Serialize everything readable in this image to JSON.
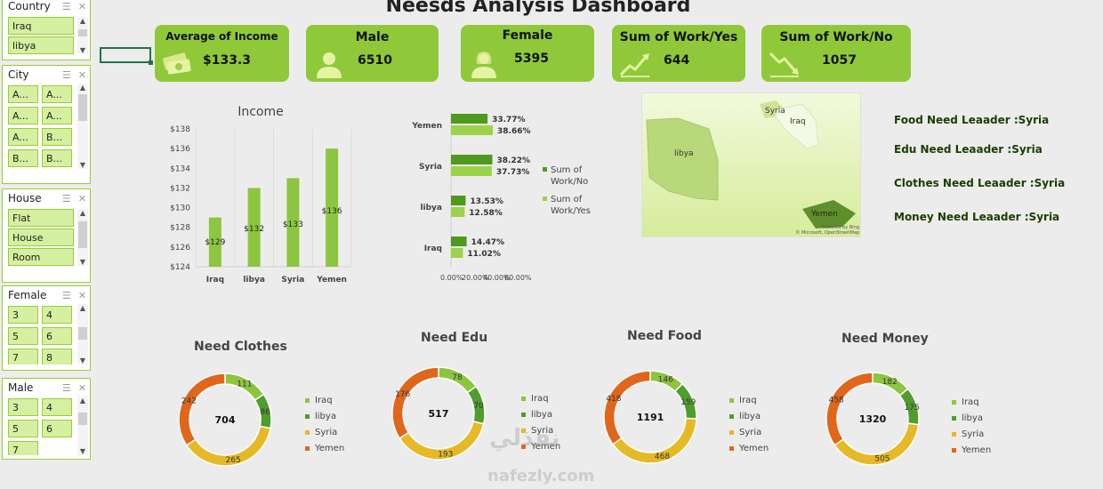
{
  "dashboard": {
    "title": "Neesds Analysis Dashboard"
  },
  "slicers": {
    "country": {
      "title": "Country",
      "items": [
        "Iraq",
        "libya"
      ]
    },
    "city": {
      "title": "City",
      "items": [
        "A...",
        "A...",
        "A...",
        "A...",
        "A...",
        "B...",
        "B...",
        "B..."
      ]
    },
    "house": {
      "title": "House",
      "items": [
        "Flat",
        "House",
        "Room"
      ]
    },
    "female": {
      "title": "Female",
      "items": [
        "3",
        "4",
        "5",
        "6",
        "7",
        "8"
      ]
    },
    "male": {
      "title": "Male",
      "items": [
        "3",
        "4",
        "5",
        "6",
        "7"
      ]
    }
  },
  "cards": [
    {
      "label": "Average of Income",
      "value": "$133.3",
      "icon": "money-icon"
    },
    {
      "label": "Male",
      "value": "6510",
      "icon": "male-user-icon"
    },
    {
      "label": "Female",
      "value": "5395",
      "icon": "female-user-icon"
    },
    {
      "label": "Sum of Work/Yes",
      "value": "644",
      "icon": "trend-up-icon"
    },
    {
      "label": "Sum of Work/No",
      "value": "1057",
      "icon": "trend-down-icon"
    }
  ],
  "colors": {
    "accent": "#8fc93a",
    "bar": "#8cc63f",
    "dark_green": "#4e9a1e",
    "light_green": "#9bd34a",
    "yemen": "#e0661c",
    "syria": "#e6b926",
    "libya": "#4f9d2c",
    "iraq": "#8cc63f"
  },
  "map": {
    "labels": [
      "libya",
      "Syria",
      "Iraq",
      "Yemen"
    ],
    "attribution1": "Powered by Bing",
    "attribution2": "© Microsoft, OpenStreetMap"
  },
  "leaders": [
    "Food Need Leaader :Syria",
    "Edu Need Leaader :Syria",
    "Clothes Need Leaader :Syria",
    "Money Need Leaader :Syria"
  ],
  "watermark": {
    "line1": "نفذلي",
    "line2": "nafezly.com"
  },
  "chart_data": [
    {
      "type": "bar",
      "title": "Income",
      "categories": [
        "Iraq",
        "libya",
        "Syria",
        "Yemen"
      ],
      "values": [
        129,
        132,
        133,
        136
      ],
      "value_labels": [
        "$129",
        "$132",
        "$133",
        "$136"
      ],
      "ylim": [
        124,
        138
      ],
      "yticks": [
        "$124",
        "$126",
        "$128",
        "$130",
        "$132",
        "$134",
        "$136",
        "$138"
      ],
      "ytick_values": [
        124,
        126,
        128,
        130,
        132,
        134,
        136,
        138
      ],
      "grid": true
    },
    {
      "type": "bar",
      "orientation": "horizontal",
      "categories": [
        "Yemen",
        "Syria",
        "libya",
        "Iraq"
      ],
      "series": [
        {
          "name": "Sum of Work/No",
          "values": [
            33.77,
            38.22,
            13.53,
            14.47
          ],
          "labels": [
            "33.77%",
            "38.22%",
            "13.53%",
            "14.47%"
          ]
        },
        {
          "name": "Sum of Work/Yes",
          "values": [
            38.66,
            37.73,
            12.58,
            11.02
          ],
          "labels": [
            "38.66%",
            "37.73%",
            "12.58%",
            "11.02%"
          ]
        }
      ],
      "xticks": [
        "0.00%",
        "20.00%",
        "40.00%",
        "60.00%"
      ],
      "xlim": [
        0,
        60
      ],
      "legend": "right"
    },
    {
      "type": "pie",
      "title": "Need Clothes",
      "total": "704",
      "labels": [
        "Iraq",
        "libya",
        "Syria",
        "Yemen"
      ],
      "values": [
        111,
        86,
        265,
        242
      ]
    },
    {
      "type": "pie",
      "title": "Need Edu",
      "total": "517",
      "labels": [
        "Iraq",
        "libya",
        "Syria",
        "Yemen"
      ],
      "values": [
        78,
        70,
        193,
        176
      ]
    },
    {
      "type": "pie",
      "title": "Need Food",
      "total": "1191",
      "labels": [
        "Iraq",
        "libya",
        "Syria",
        "Yemen"
      ],
      "values": [
        146,
        159,
        468,
        418
      ]
    },
    {
      "type": "pie",
      "title": "Need Money",
      "total": "1320",
      "labels": [
        "Iraq",
        "libya",
        "Syria",
        "Yemen"
      ],
      "values": [
        182,
        175,
        505,
        458
      ]
    }
  ]
}
